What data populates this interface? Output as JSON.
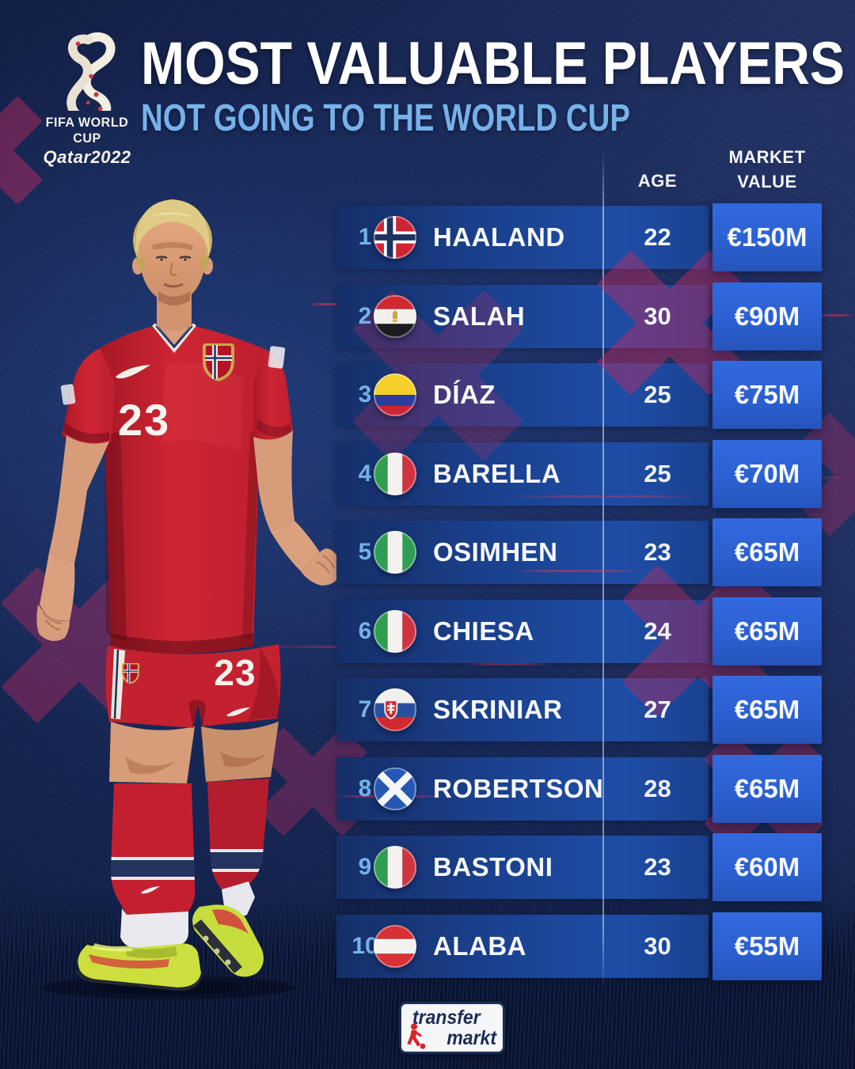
{
  "poster": {
    "title": "MOST VALUABLE PLAYERS",
    "subtitle": "NOT GOING TO THE WORLD CUP"
  },
  "event_logo": {
    "line1": "FIFA WORLD CUP",
    "line2": "Qatar2022"
  },
  "table": {
    "columns": {
      "age": "AGE",
      "market_value_line1": "MARKET",
      "market_value_line2": "VALUE"
    },
    "players": [
      {
        "rank": "1",
        "name": "HAALAND",
        "country": "Norway",
        "flag": "norway",
        "age": "22",
        "market_value": "€150M"
      },
      {
        "rank": "2",
        "name": "SALAH",
        "country": "Egypt",
        "flag": "egypt",
        "age": "30",
        "market_value": "€90M"
      },
      {
        "rank": "3",
        "name": "DÍAZ",
        "country": "Colombia",
        "flag": "colombia",
        "age": "25",
        "market_value": "€75M"
      },
      {
        "rank": "4",
        "name": "BARELLA",
        "country": "Italy",
        "flag": "italy",
        "age": "25",
        "market_value": "€70M"
      },
      {
        "rank": "5",
        "name": "OSIMHEN",
        "country": "Nigeria",
        "flag": "nigeria",
        "age": "23",
        "market_value": "€65M"
      },
      {
        "rank": "6",
        "name": "CHIESA",
        "country": "Italy",
        "flag": "italy",
        "age": "24",
        "market_value": "€65M"
      },
      {
        "rank": "7",
        "name": "SKRINIAR",
        "country": "Slovakia",
        "flag": "slovakia",
        "age": "27",
        "market_value": "€65M"
      },
      {
        "rank": "8",
        "name": "ROBERTSON",
        "country": "Scotland",
        "flag": "scotland",
        "age": "28",
        "market_value": "€65M"
      },
      {
        "rank": "9",
        "name": "BASTONI",
        "country": "Italy",
        "flag": "italy",
        "age": "23",
        "market_value": "€60M"
      },
      {
        "rank": "10",
        "name": "ALABA",
        "country": "Austria",
        "flag": "austria",
        "age": "30",
        "market_value": "€55M"
      }
    ]
  },
  "player_photo": {
    "jersey_number": "23",
    "team": "Norway"
  },
  "footer": {
    "brand_line1": "transfer",
    "brand_line2": "markt"
  },
  "colors": {
    "background": "#14234e",
    "row_right": "#1e4da6",
    "value_box": "#2c60d2",
    "accent_blue": "#76b2ea",
    "cross": "#c22a5e",
    "red_line": "#e23158",
    "jersey_red": "#c41f2e",
    "title_white": "#ffffff"
  }
}
